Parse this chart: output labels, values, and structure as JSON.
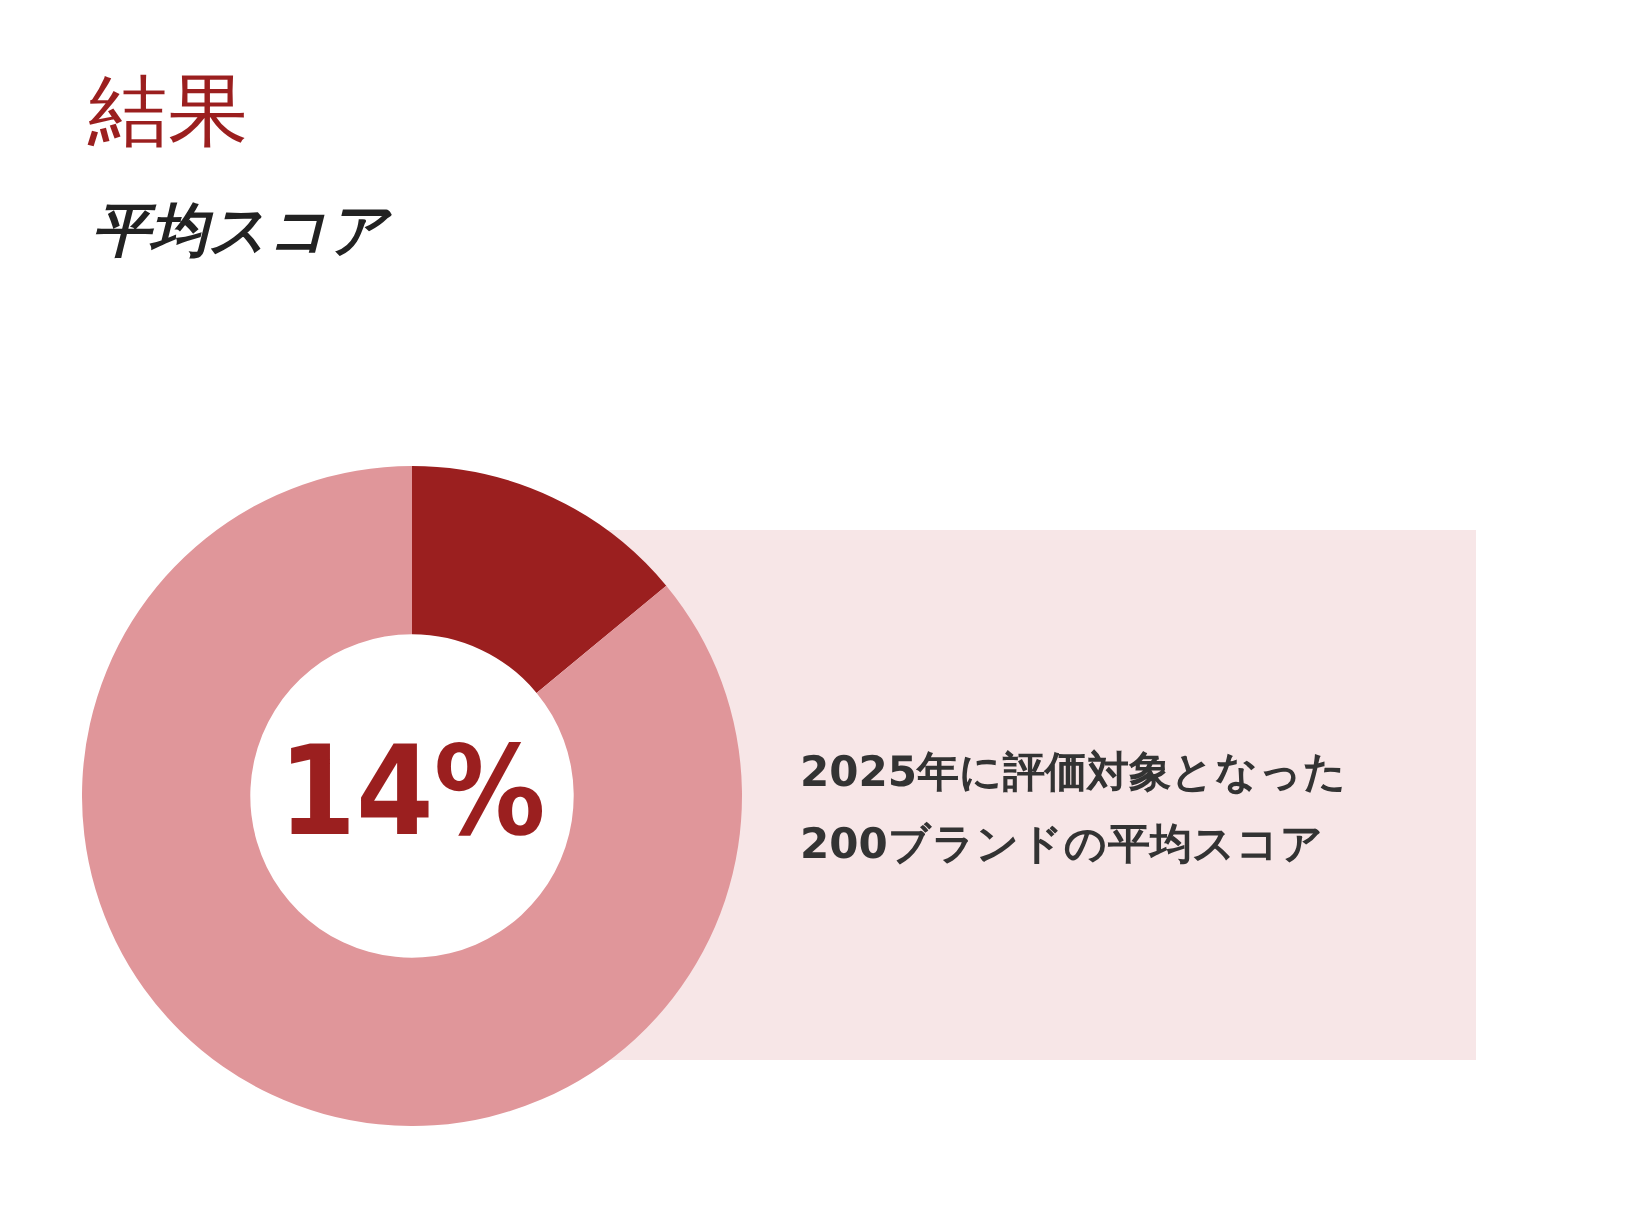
{
  "chart_data": {
    "type": "donut",
    "title": "結果",
    "subtitle": "平均スコア",
    "categories": [
      null,
      null
    ],
    "values": [
      14,
      86
    ],
    "colors": [
      "#9b1f1f",
      "#e0969a"
    ],
    "value_labels": [
      "14%",
      null
    ],
    "annotations": [
      "2025年に評価対象となった200ブランドの平均スコア"
    ]
  }
}
